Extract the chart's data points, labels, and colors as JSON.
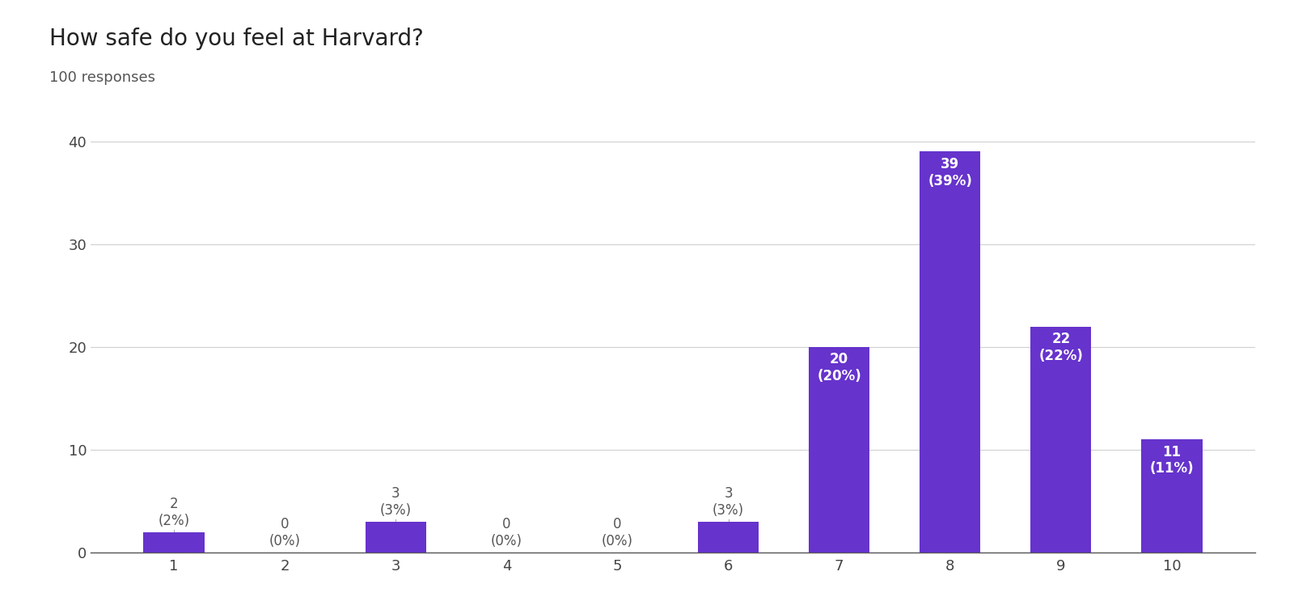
{
  "title": "How safe do you feel at Harvard?",
  "subtitle": "100 responses",
  "categories": [
    1,
    2,
    3,
    4,
    5,
    6,
    7,
    8,
    9,
    10
  ],
  "values": [
    2,
    0,
    3,
    0,
    0,
    3,
    20,
    39,
    22,
    11
  ],
  "percentages": [
    2,
    0,
    3,
    0,
    0,
    3,
    20,
    39,
    22,
    11
  ],
  "bar_color": "#6633cc",
  "label_color_inside": "#ffffff",
  "label_color_outside": "#555555",
  "background_color": "#ffffff",
  "grid_color": "#d0d0d0",
  "ylim": [
    0,
    43
  ],
  "yticks": [
    0,
    10,
    20,
    30,
    40
  ],
  "title_fontsize": 20,
  "subtitle_fontsize": 13,
  "tick_fontsize": 13,
  "label_fontsize": 12,
  "inside_threshold": 5
}
